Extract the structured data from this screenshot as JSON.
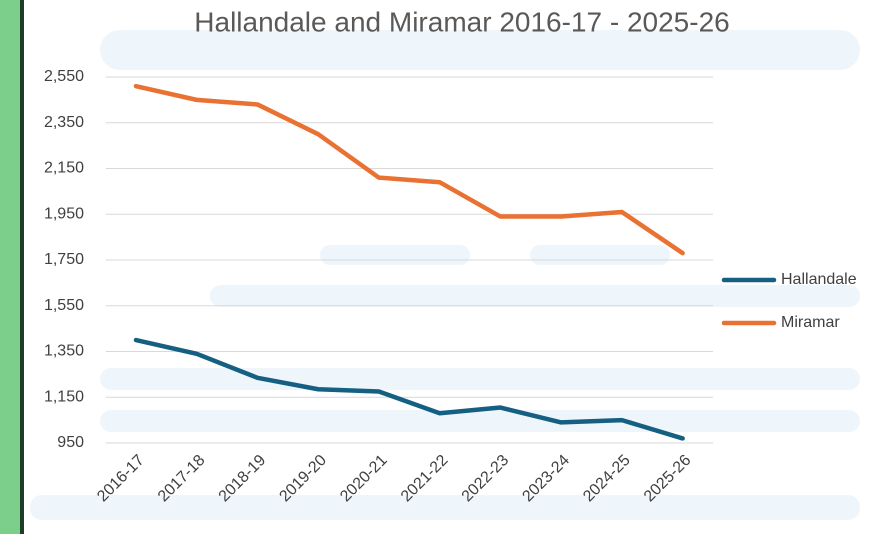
{
  "chart_data": {
    "type": "line",
    "title": "Hallandale and Miramar 2016-17 - 2025-26",
    "categories": [
      "2016-17",
      "2017-18",
      "2018-19",
      "2019-20",
      "2020-21",
      "2021-22",
      "2022-23",
      "2023-24",
      "2024-25",
      "2025-26"
    ],
    "series": [
      {
        "name": "Hallandale",
        "color": "#156082",
        "values": [
          1400,
          1340,
          1235,
          1185,
          1175,
          1080,
          1105,
          1040,
          1050,
          970
        ]
      },
      {
        "name": "Miramar",
        "color": "#e97132",
        "values": [
          2510,
          2450,
          2430,
          2300,
          2110,
          2090,
          1940,
          1940,
          1960,
          1780
        ]
      }
    ],
    "ylim": [
      950,
      2550
    ],
    "yticks": [
      950,
      {
        "value": 1150,
        "label": "1,150"
      },
      {
        "value": 1350,
        "label": "1,350"
      },
      {
        "value": 1550,
        "label": "1,550"
      },
      {
        "value": 1750,
        "label": "1,750"
      },
      {
        "value": 1950,
        "label": "1,950"
      },
      {
        "value": 2150,
        "label": "2,150"
      },
      {
        "value": 2350,
        "label": "2,350"
      },
      {
        "value": 2550,
        "label": "2,550"
      }
    ],
    "grid": true,
    "legend": "right"
  }
}
